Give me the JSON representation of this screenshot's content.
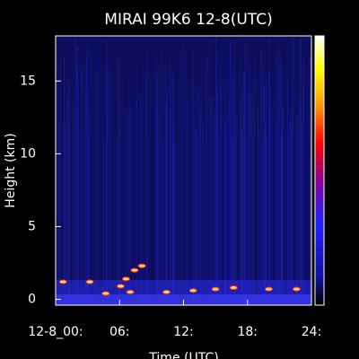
{
  "chart_data": {
    "type": "scatter",
    "title": "MIRAI 99K6 12-8(UTC)",
    "x_label": "Time (UTC)",
    "y_label": "Height (km)",
    "x": [
      0.7,
      3.2,
      4.7,
      6.1,
      6.6,
      7.0,
      7.4,
      8.1,
      10.4,
      12.9,
      15.0,
      16.7,
      20.0,
      22.6
    ],
    "values": [
      1.2,
      1.2,
      0.4,
      0.9,
      1.4,
      0.5,
      2.0,
      2.3,
      0.5,
      0.6,
      0.7,
      0.8,
      0.7,
      0.7
    ],
    "color": "#ffe070",
    "xlim": [
      0,
      24
    ],
    "xticks": [
      {
        "value": 0,
        "label": "12-8_00:"
      },
      {
        "value": 6,
        "label": "06:"
      },
      {
        "value": 12,
        "label": "12:"
      },
      {
        "value": 18,
        "label": "18:"
      },
      {
        "value": 24,
        "label": "24:"
      }
    ],
    "ylim": [
      -0.4,
      18.1
    ],
    "yticks": [
      0,
      5,
      10,
      15
    ]
  }
}
